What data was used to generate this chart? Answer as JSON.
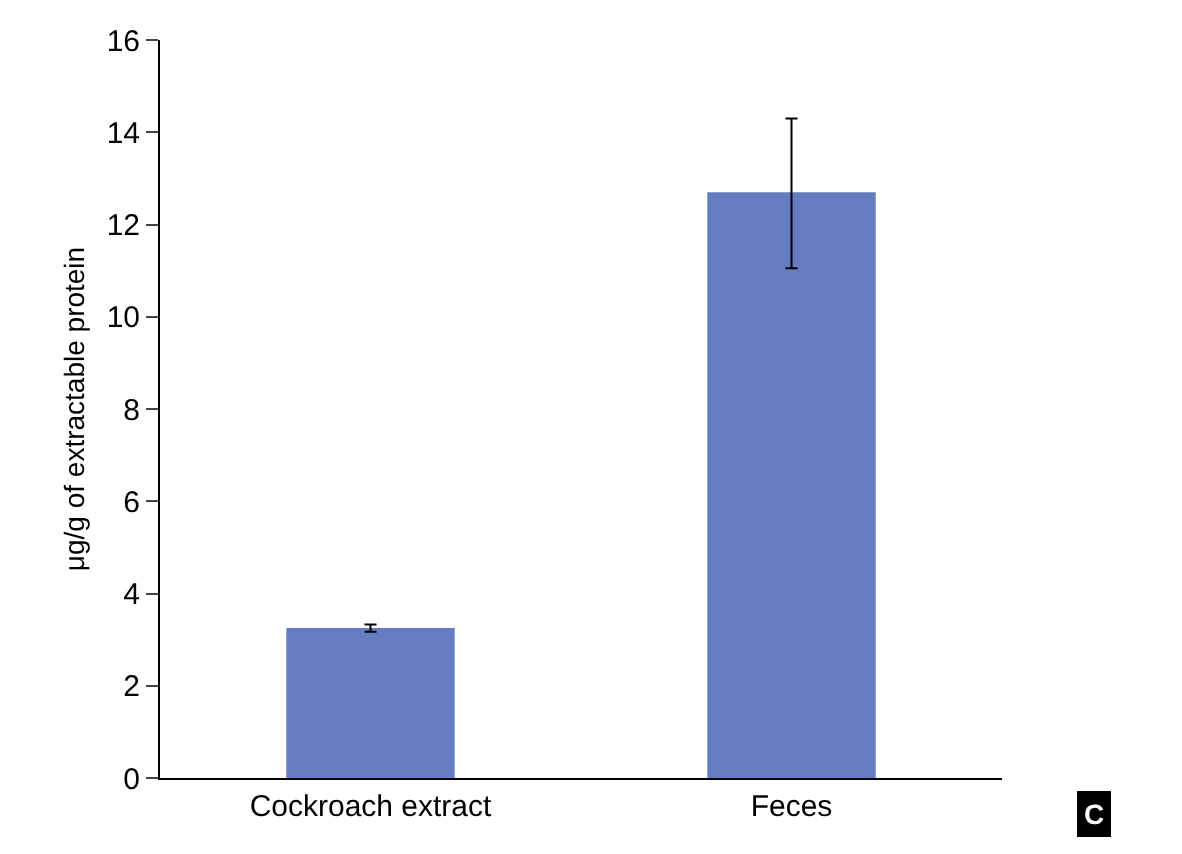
{
  "chart_data": {
    "type": "bar",
    "ylabel": "μg/g of extractable protein",
    "categories": [
      "Cockroach extract",
      "Feces"
    ],
    "values": [
      3.25,
      12.7
    ],
    "color": "#667cc0",
    "errors": [
      0.08,
      [
        11.05,
        14.3
      ]
    ],
    "ylim": [
      0,
      16
    ],
    "yticks": [
      0,
      2,
      4,
      6,
      8,
      10,
      12,
      14,
      16
    ],
    "grid": false,
    "annotations": [
      "C"
    ]
  }
}
